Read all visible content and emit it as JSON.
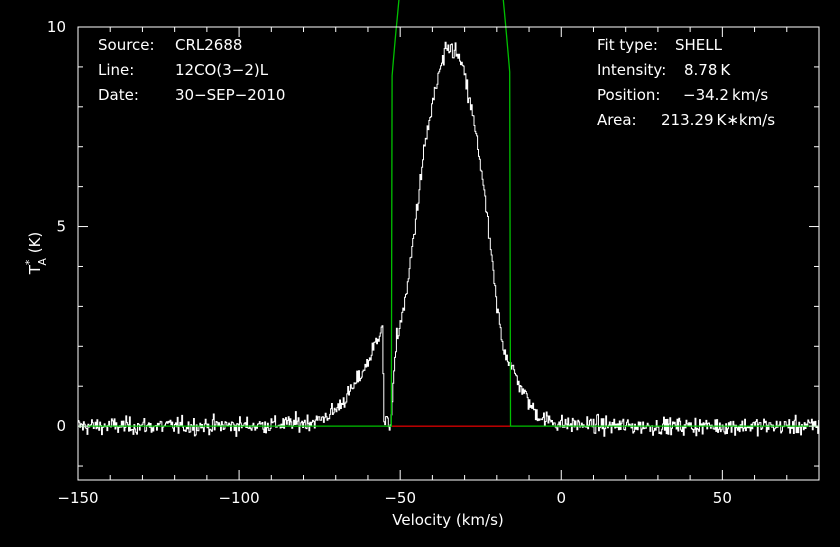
{
  "chart_data": {
    "type": "line",
    "xlabel": "Velocity (km/s)",
    "ylabel": {
      "main": "T",
      "sup": "*",
      "sub": "A",
      "unit": " (K)"
    },
    "xlim": [
      -150,
      80
    ],
    "ylim": [
      -1.35,
      10.0
    ],
    "x_ticks": [
      -150,
      -100,
      -50,
      0,
      50
    ],
    "y_ticks": [
      0,
      5,
      10
    ],
    "header_left": [
      {
        "label": "Source:",
        "value": "CRL2688"
      },
      {
        "label": "Line:",
        "value": "12CO(3−2)L"
      },
      {
        "label": "Date:",
        "value": "30−SEP−2010"
      }
    ],
    "header_right": [
      {
        "label": "Fit type:",
        "value": "SHELL"
      },
      {
        "label": "Intensity:",
        "value": "8.78 K"
      },
      {
        "label": "Position:",
        "value": "−34.2 km/s"
      },
      {
        "label": "Area:",
        "value": "213.29 K∗km/s"
      }
    ],
    "fit": {
      "model": "shell",
      "intensity_K": 8.78,
      "center_kms": -34.2,
      "half_width_kms": 18.3,
      "horn_ratio": -0.5,
      "area_K_kms": 213.29
    },
    "series": [
      {
        "role": "spectrum",
        "color": "#ffffff",
        "points": [
          [
            -150,
            0.0
          ],
          [
            -120,
            0.0
          ],
          [
            -95,
            0.02
          ],
          [
            -80,
            0.08
          ],
          [
            -75,
            0.15
          ],
          [
            -70,
            0.4
          ],
          [
            -65,
            0.9
          ],
          [
            -60,
            1.6
          ],
          [
            -57,
            2.2
          ],
          [
            -55.5,
            2.6
          ],
          [
            -55,
            0.1
          ],
          [
            -53,
            0.05
          ],
          [
            -51,
            2.2
          ],
          [
            -48,
            3.3
          ],
          [
            -45,
            5.3
          ],
          [
            -42,
            7.2
          ],
          [
            -38,
            8.8
          ],
          [
            -36,
            9.3
          ],
          [
            -34,
            9.5
          ],
          [
            -31,
            9.1
          ],
          [
            -28,
            8.0
          ],
          [
            -25,
            6.6
          ],
          [
            -22,
            4.5
          ],
          [
            -20,
            3.0
          ],
          [
            -18,
            2.0
          ],
          [
            -15,
            1.4
          ],
          [
            -12,
            0.9
          ],
          [
            -9,
            0.45
          ],
          [
            -6,
            0.2
          ],
          [
            0,
            0.05
          ],
          [
            20,
            0.0
          ],
          [
            80,
            0.0
          ]
        ],
        "noise_rms_K": 0.2
      },
      {
        "role": "fit",
        "color": "#00c000"
      },
      {
        "role": "fit-window",
        "color": "#d00000",
        "x_range": [
          -52.5,
          -15.9
        ]
      }
    ],
    "colors": {
      "background": "#000000",
      "axes": "#ffffff"
    }
  }
}
